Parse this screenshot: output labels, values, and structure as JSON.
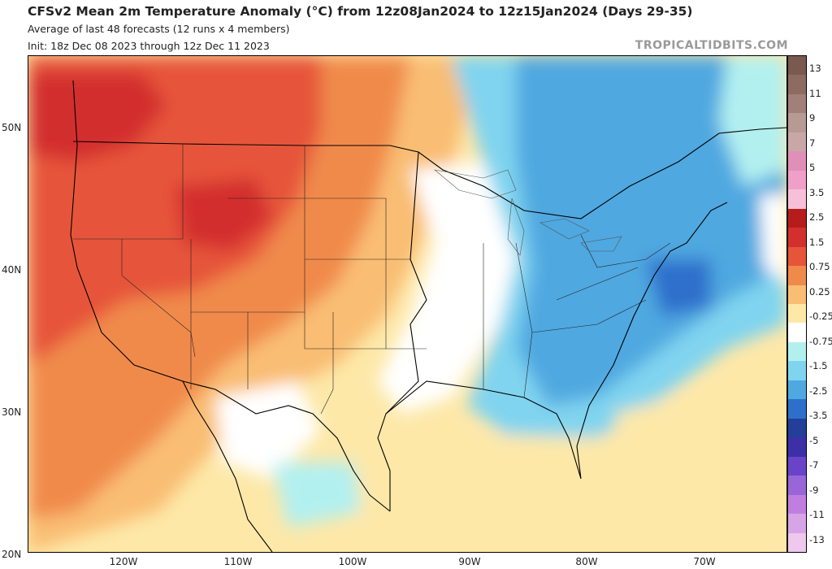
{
  "header": {
    "title": "CFSv2 Mean 2m Temperature Anomaly (°C) from 12z08Jan2024 to 12z15Jan2024 (Days 29-35)",
    "subtitle1": "Average of last 48 forecasts (12 runs x 4 members)",
    "subtitle2": "Init: 18z Dec 08 2023 through 12z Dec 11 2023",
    "brand": "TROPICALTIDBITS.COM"
  },
  "map": {
    "lat_labels": [
      "50N",
      "40N",
      "30N",
      "20N"
    ],
    "lon_labels": [
      "120W",
      "110W",
      "100W",
      "90W",
      "80W",
      "70W"
    ],
    "lat_values": [
      50,
      40,
      30,
      20
    ],
    "lon_values": [
      -120,
      -110,
      -100,
      -90,
      -80,
      -70
    ]
  },
  "colorbar": {
    "labels": [
      "13",
      "11",
      "9",
      "7",
      "5",
      "3.5",
      "2.5",
      "1.5",
      "0.75",
      "0.25",
      "-0.25",
      "-0.75",
      "-1.5",
      "-2.5",
      "-3.5",
      "-5",
      "-7",
      "-9",
      "-11",
      "-13"
    ],
    "colors": [
      "#7a5a4e",
      "#8d6b60",
      "#a08078",
      "#b89a94",
      "#c8a8a6",
      "#e090b8",
      "#f0a0c8",
      "#f8c0d8",
      "#b71c1c",
      "#d32f2f",
      "#e6553a",
      "#f08a4b",
      "#f9bd73",
      "#fde8a8",
      "#ffffff",
      "#b2f0f0",
      "#80d4ef",
      "#4fa8e0",
      "#2e6fcc",
      "#243f99",
      "#3c2fa8",
      "#6a44c8",
      "#9866d8",
      "#c07fe0",
      "#d8a4e8",
      "#eec8ee"
    ],
    "colors_note": "bottom-to-top order is reversed in rendering"
  }
}
